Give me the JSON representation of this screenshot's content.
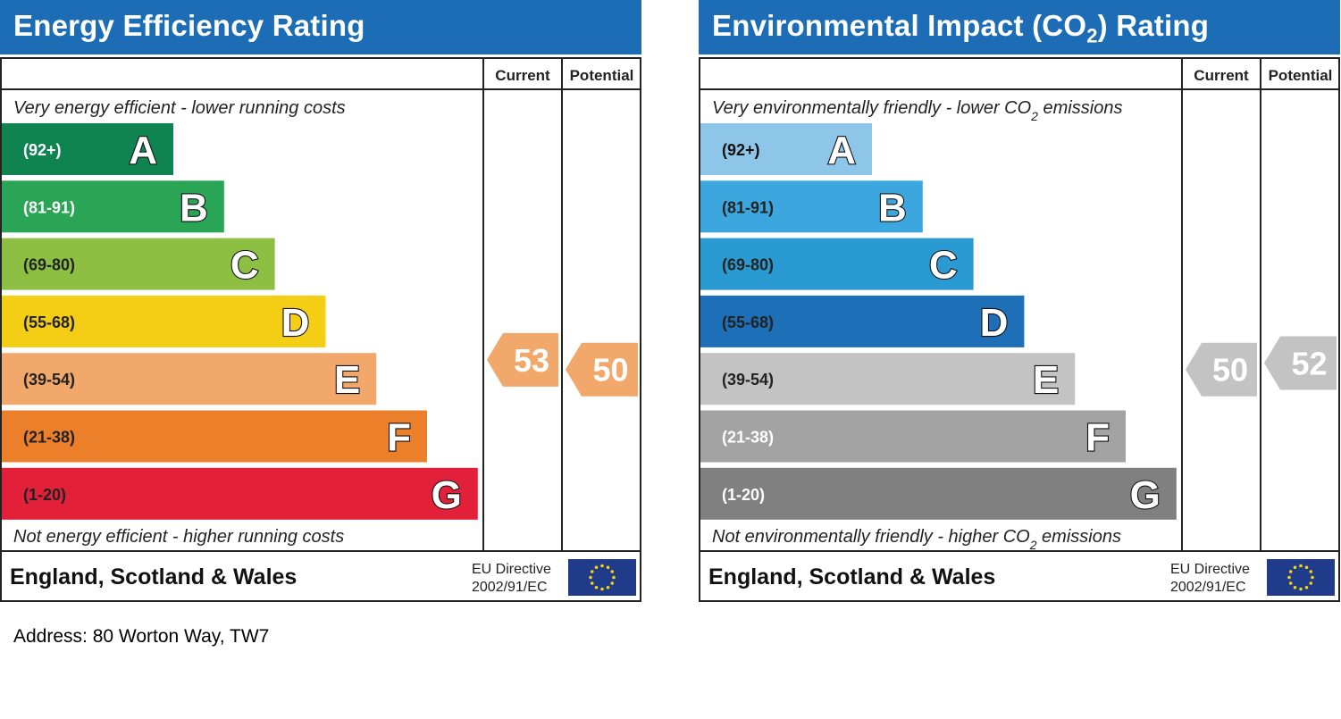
{
  "address": "Address: 80 Worton Way, TW7",
  "chart_data": [
    {
      "type": "bar",
      "title": "Energy Efficiency Rating",
      "columns": [
        "Current",
        "Potential"
      ],
      "top_note": "Very energy efficient - lower running costs",
      "bottom_note": "Not energy efficient - higher running costs",
      "footer": {
        "region": "England, Scotland & Wales",
        "directive_line1": "EU Directive",
        "directive_line2": "2002/91/EC"
      },
      "bands": [
        {
          "range": "(92+)",
          "letter": "A",
          "color": "#0f8451",
          "text_color": "#ffffff"
        },
        {
          "range": "(81-91)",
          "letter": "B",
          "color": "#2aa455",
          "text_color": "#ffffff"
        },
        {
          "range": "(69-80)",
          "letter": "C",
          "color": "#8dbf43",
          "text_color": "#222222"
        },
        {
          "range": "(55-68)",
          "letter": "D",
          "color": "#f4cd15",
          "text_color": "#222222"
        },
        {
          "range": "(39-54)",
          "letter": "E",
          "color": "#f2a86b",
          "text_color": "#222222"
        },
        {
          "range": "(21-38)",
          "letter": "F",
          "color": "#ec7f2a",
          "text_color": "#222222"
        },
        {
          "range": "(1-20)",
          "letter": "G",
          "color": "#e3203a",
          "text_color": "#222222"
        }
      ],
      "current": {
        "value": 53,
        "color": "#f2a86b"
      },
      "potential": {
        "value": 50,
        "color": "#f2a86b"
      }
    },
    {
      "type": "bar",
      "title": "Environmental Impact (CO2) Rating",
      "title_main": "Environmental Impact (CO",
      "title_sub": "2",
      "title_end": ") Rating",
      "columns": [
        "Current",
        "Potential"
      ],
      "top_note": "Very environmentally friendly - lower CO2 emissions",
      "top_note_parts": [
        "Very environmentally friendly - lower CO",
        "2",
        " emissions"
      ],
      "bottom_note": "Not environmentally friendly - higher CO2 emissions",
      "bottom_note_parts": [
        "Not environmentally friendly - higher CO",
        "2",
        " emissions"
      ],
      "footer": {
        "region": "England, Scotland & Wales",
        "directive_line1": "EU Directive",
        "directive_line2": "2002/91/EC"
      },
      "bands": [
        {
          "range": "(92+)",
          "letter": "A",
          "color": "#8dc6e8",
          "text_color": "#111111"
        },
        {
          "range": "(81-91)",
          "letter": "B",
          "color": "#3ca7de",
          "text_color": "#222222"
        },
        {
          "range": "(69-80)",
          "letter": "C",
          "color": "#2a9ad3",
          "text_color": "#222222"
        },
        {
          "range": "(55-68)",
          "letter": "D",
          "color": "#1d6fb8",
          "text_color": "#222222"
        },
        {
          "range": "(39-54)",
          "letter": "E",
          "color": "#c3c3c3",
          "text_color": "#222222"
        },
        {
          "range": "(21-38)",
          "letter": "F",
          "color": "#a3a3a3",
          "text_color": "#ffffff"
        },
        {
          "range": "(1-20)",
          "letter": "G",
          "color": "#808080",
          "text_color": "#ffffff"
        }
      ],
      "current": {
        "value": 50,
        "color": "#c3c3c3"
      },
      "potential": {
        "value": 52,
        "color": "#c3c3c3"
      }
    }
  ]
}
